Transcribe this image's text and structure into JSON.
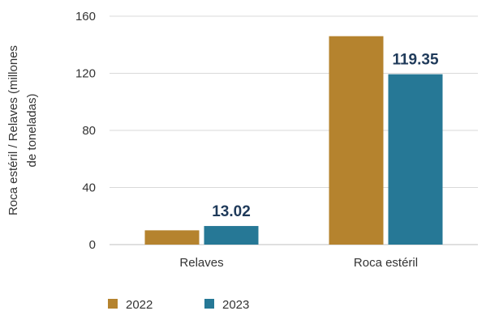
{
  "chart_data": {
    "type": "bar",
    "categories": [
      "Relaves",
      "Roca estéril"
    ],
    "series": [
      {
        "name": "2022",
        "color": "#b5832e",
        "values": [
          10,
          146
        ]
      },
      {
        "name": "2023",
        "color": "#267896",
        "values": [
          13.02,
          119.35
        ]
      }
    ],
    "data_labels": [
      {
        "series": 1,
        "index": 0,
        "text": "13.02"
      },
      {
        "series": 1,
        "index": 1,
        "text": "119.35"
      }
    ],
    "y_ticks": [
      "0",
      "40",
      "80",
      "120",
      "160"
    ],
    "ylim": [
      0,
      160
    ],
    "ylabel_lines": [
      "Roca estéril / Relaves (millones",
      "de toneladas)"
    ],
    "grid": true,
    "legend": "bottom-left"
  }
}
